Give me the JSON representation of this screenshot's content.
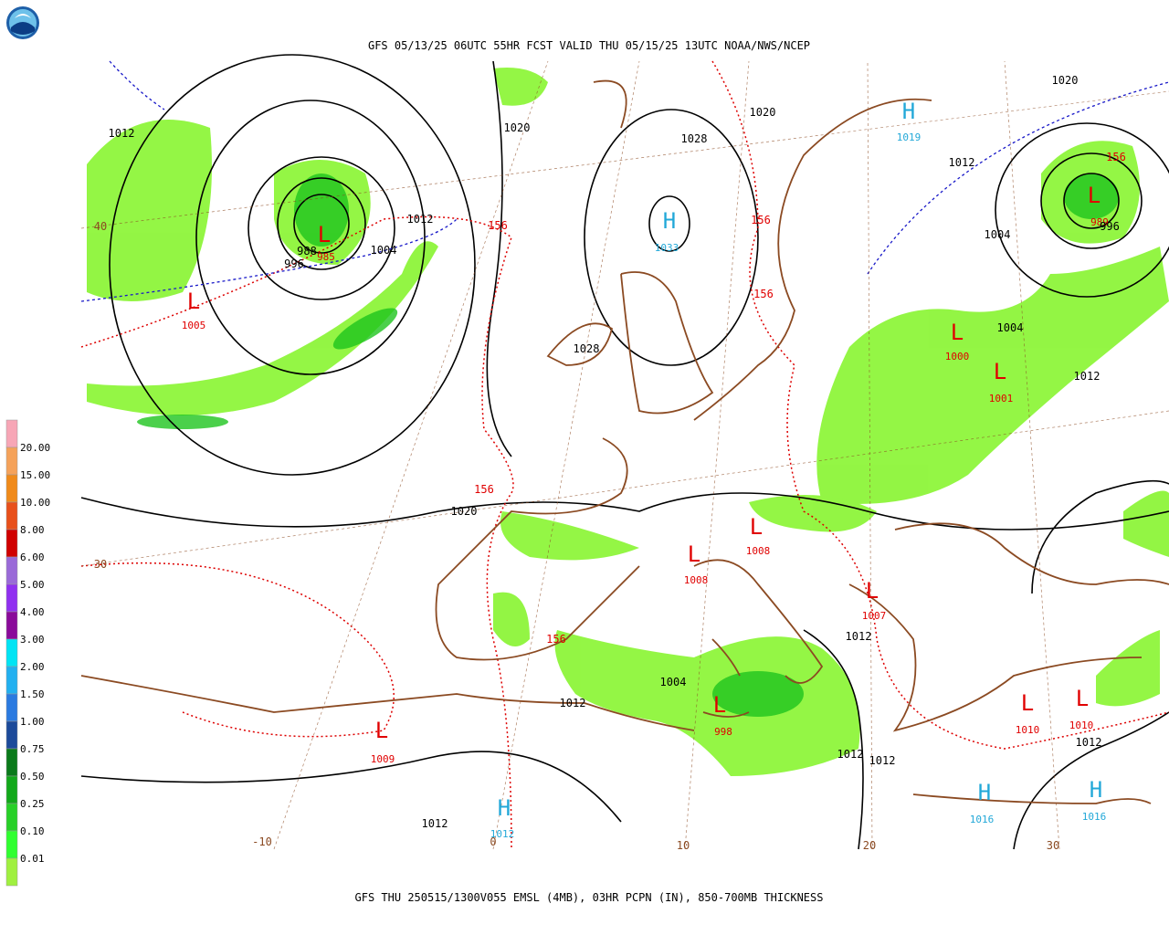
{
  "header": {
    "title": "GFS 05/13/25 06UTC 55HR FCST VALID THU 05/15/25 13UTC NOAA/NWS/NCEP"
  },
  "footer": {
    "caption": "GFS THU 250515/1300V055 EMSL (4MB), 03HR PCPN (IN), 850-700MB THICKNESS"
  },
  "legend": {
    "labels": [
      "20.00",
      "15.00",
      "10.00",
      "8.00",
      "6.00",
      "5.00",
      "4.00",
      "3.00",
      "2.00",
      "1.50",
      "1.00",
      "0.75",
      "0.50",
      "0.25",
      "0.10",
      "0.01"
    ]
  },
  "pressure_centers": [
    {
      "symbol": "L",
      "value": "985"
    },
    {
      "symbol": "L",
      "value": "1005"
    },
    {
      "symbol": "H",
      "value": "1033"
    },
    {
      "symbol": "H",
      "value": "1019"
    },
    {
      "symbol": "L",
      "value": "989"
    },
    {
      "symbol": "L",
      "value": "1000"
    },
    {
      "symbol": "L",
      "value": "1001"
    },
    {
      "symbol": "L",
      "value": "1008"
    },
    {
      "symbol": "L",
      "value": "1008"
    },
    {
      "symbol": "L",
      "value": "1007"
    },
    {
      "symbol": "L",
      "value": "1009"
    },
    {
      "symbol": "L",
      "value": "998"
    },
    {
      "symbol": "L",
      "value": "1010"
    },
    {
      "symbol": "L",
      "value": "1010"
    },
    {
      "symbol": "H",
      "value": "1012"
    },
    {
      "symbol": "H",
      "value": "1016"
    },
    {
      "symbol": "H",
      "value": "1016"
    }
  ],
  "isobar_labels": [
    "1012",
    "1020",
    "1020",
    "1028",
    "1020",
    "1012",
    "1012",
    "1004",
    "988",
    "996",
    "1004",
    "996",
    "1028",
    "1004",
    "1012",
    "1020",
    "1012",
    "1004",
    "1012",
    "1012",
    "1012",
    "1012",
    "1012"
  ],
  "thickness_labels": [
    "156",
    "156",
    "156",
    "156",
    "156",
    "156"
  ],
  "grid_labels": [
    "40",
    "30",
    "-10",
    "0",
    "10",
    "20",
    "30"
  ]
}
